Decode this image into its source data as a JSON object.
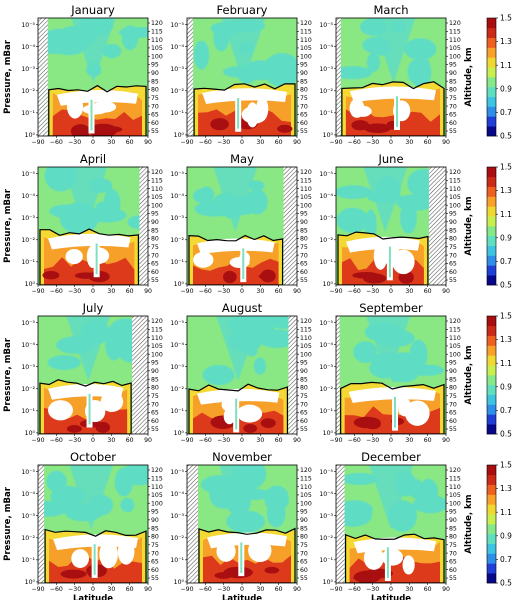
{
  "chart_data": {
    "type": "heatmap",
    "panel_titles": [
      "January",
      "February",
      "March",
      "April",
      "May",
      "June",
      "July",
      "August",
      "September",
      "October",
      "November",
      "December"
    ],
    "xlabel": "Latitude",
    "ylabel": "Pressure, mBar",
    "y2label": "Altitude, km",
    "colorbar_label": "",
    "x_ticks": [
      "−90",
      "−60",
      "−30",
      "0",
      "30",
      "60",
      "90"
    ],
    "x_tick_values": [
      -90,
      -60,
      -30,
      0,
      30,
      60,
      90
    ],
    "pressure_tick_labels": [
      "10⁰",
      "10⁻¹",
      "10⁻²",
      "10⁻³",
      "10⁻⁴",
      "10⁻⁵"
    ],
    "pressure_tick_exponents": [
      0,
      -1,
      -2,
      -3,
      -4,
      -5
    ],
    "altitude_ticks": [
      "55",
      "60",
      "65",
      "70",
      "75",
      "80",
      "85",
      "90",
      "95",
      "100",
      "105",
      "110",
      "115",
      "120"
    ],
    "altitude_tick_values": [
      55,
      60,
      65,
      70,
      75,
      80,
      85,
      90,
      95,
      100,
      105,
      110,
      115,
      120
    ],
    "colorbar_ticks": [
      "0.5",
      "0.7",
      "0.9",
      "1.1",
      "1.3",
      "1.5"
    ],
    "colorbar_tick_values": [
      0.5,
      0.7,
      0.9,
      1.1,
      1.3,
      1.5
    ],
    "value_range": [
      0.5,
      1.5
    ],
    "colormap": [
      "#08088a",
      "#1f3fd6",
      "#2f8fe8",
      "#3ec4e0",
      "#60dec0",
      "#86e888",
      "#c8ee50",
      "#f0d832",
      "#f8a02a",
      "#ee6020",
      "#cc2a18",
      "#a80e10"
    ],
    "polar_night_hatch": {
      "January": {
        "south": false,
        "north": [
          -90,
          -72
        ]
      },
      "comment_removed": true
    },
    "hatch_regions": [
      {
        "month": "January",
        "lat_range": [
          -90,
          -74
        ]
      },
      {
        "month": "February",
        "lat_range": [
          -90,
          -80
        ]
      },
      {
        "month": "March",
        "lat_range": [
          -90,
          -82
        ]
      },
      {
        "month": "April",
        "lat_range": [
          76,
          90
        ]
      },
      {
        "month": "May",
        "lat_range": [
          68,
          90
        ]
      },
      {
        "month": "June",
        "lat_range": [
          62,
          90
        ]
      },
      {
        "month": "July",
        "lat_range": [
          64,
          90
        ]
      },
      {
        "month": "August",
        "lat_range": [
          76,
          90
        ]
      },
      {
        "month": "September",
        "lat_range": [
          -90,
          -84
        ]
      },
      {
        "month": "October",
        "lat_range": [
          -90,
          -80
        ]
      },
      {
        "month": "November",
        "lat_range": [
          -90,
          -72
        ]
      },
      {
        "month": "December",
        "lat_range": [
          -90,
          -76
        ]
      }
    ],
    "grid": false,
    "legend": "colorbar-right"
  }
}
